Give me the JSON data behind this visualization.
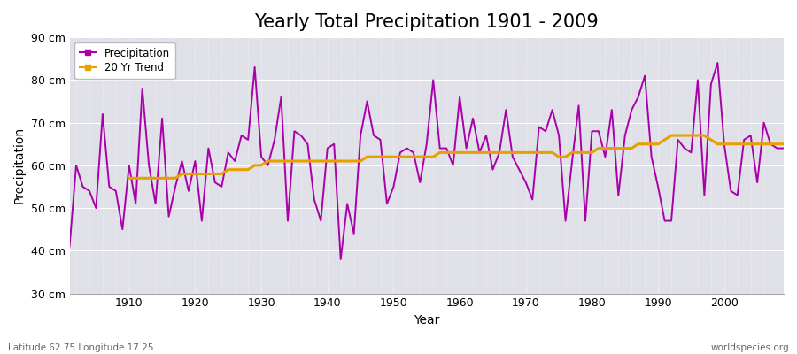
{
  "title": "Yearly Total Precipitation 1901 - 2009",
  "xlabel": "Year",
  "ylabel": "Precipitation",
  "ylim": [
    30,
    90
  ],
  "xlim": [
    1901,
    2009
  ],
  "yticks": [
    30,
    40,
    50,
    60,
    70,
    80,
    90
  ],
  "ytick_labels": [
    "30 cm",
    "40 cm",
    "50 cm",
    "60 cm",
    "70 cm",
    "80 cm",
    "90 cm"
  ],
  "xticks": [
    1910,
    1920,
    1930,
    1940,
    1950,
    1960,
    1970,
    1980,
    1990,
    2000
  ],
  "fig_bg_color": "#ffffff",
  "plot_bg_color": "#e0e0e8",
  "precip_color": "#aa00aa",
  "trend_color": "#e8a000",
  "precip_linewidth": 1.4,
  "trend_linewidth": 2.2,
  "title_fontsize": 15,
  "axis_label_fontsize": 10,
  "tick_fontsize": 9,
  "footer_left": "Latitude 62.75 Longitude 17.25",
  "footer_right": "worldspecies.org",
  "legend_labels": [
    "Precipitation",
    "20 Yr Trend"
  ],
  "years": [
    1901,
    1902,
    1903,
    1904,
    1905,
    1906,
    1907,
    1908,
    1909,
    1910,
    1911,
    1912,
    1913,
    1914,
    1915,
    1916,
    1917,
    1918,
    1919,
    1920,
    1921,
    1922,
    1923,
    1924,
    1925,
    1926,
    1927,
    1928,
    1929,
    1930,
    1931,
    1932,
    1933,
    1934,
    1935,
    1936,
    1937,
    1938,
    1939,
    1940,
    1941,
    1942,
    1943,
    1944,
    1945,
    1946,
    1947,
    1948,
    1949,
    1950,
    1951,
    1952,
    1953,
    1954,
    1955,
    1956,
    1957,
    1958,
    1959,
    1960,
    1961,
    1962,
    1963,
    1964,
    1965,
    1966,
    1967,
    1968,
    1969,
    1970,
    1971,
    1972,
    1973,
    1974,
    1975,
    1976,
    1977,
    1978,
    1979,
    1980,
    1981,
    1982,
    1983,
    1984,
    1985,
    1986,
    1987,
    1988,
    1989,
    1990,
    1991,
    1992,
    1993,
    1994,
    1995,
    1996,
    1997,
    1998,
    1999,
    2000,
    2001,
    2002,
    2003,
    2004,
    2005,
    2006,
    2007,
    2008,
    2009
  ],
  "precip": [
    41,
    60,
    55,
    54,
    50,
    72,
    55,
    54,
    45,
    60,
    51,
    78,
    60,
    51,
    71,
    48,
    55,
    61,
    54,
    61,
    47,
    64,
    56,
    55,
    63,
    61,
    67,
    66,
    83,
    62,
    60,
    66,
    76,
    47,
    68,
    67,
    65,
    52,
    47,
    64,
    65,
    38,
    51,
    44,
    67,
    75,
    67,
    66,
    51,
    55,
    63,
    64,
    63,
    56,
    65,
    80,
    64,
    64,
    60,
    76,
    64,
    71,
    63,
    67,
    59,
    63,
    73,
    62,
    59,
    56,
    52,
    69,
    68,
    73,
    67,
    47,
    61,
    74,
    47,
    68,
    68,
    62,
    73,
    53,
    67,
    73,
    76,
    81,
    62,
    55,
    47,
    47,
    66,
    64,
    63,
    80,
    53,
    79,
    84,
    65,
    54,
    53,
    66,
    67,
    56,
    70,
    65,
    64,
    64
  ],
  "trend": [
    null,
    null,
    null,
    null,
    null,
    null,
    null,
    null,
    null,
    57,
    57,
    57,
    57,
    57,
    57,
    57,
    57,
    58,
    58,
    58,
    58,
    58,
    58,
    58,
    59,
    59,
    59,
    59,
    60,
    60,
    61,
    61,
    61,
    61,
    61,
    61,
    61,
    61,
    61,
    61,
    61,
    61,
    61,
    61,
    61,
    62,
    62,
    62,
    62,
    62,
    62,
    62,
    62,
    62,
    62,
    62,
    63,
    63,
    63,
    63,
    63,
    63,
    63,
    63,
    63,
    63,
    63,
    63,
    63,
    63,
    63,
    63,
    63,
    63,
    62,
    62,
    63,
    63,
    63,
    63,
    64,
    64,
    64,
    64,
    64,
    64,
    65,
    65,
    65,
    65,
    66,
    67,
    67,
    67,
    67,
    67,
    67,
    66,
    65,
    65,
    65,
    65,
    65,
    65,
    65,
    65,
    65,
    65,
    65
  ]
}
